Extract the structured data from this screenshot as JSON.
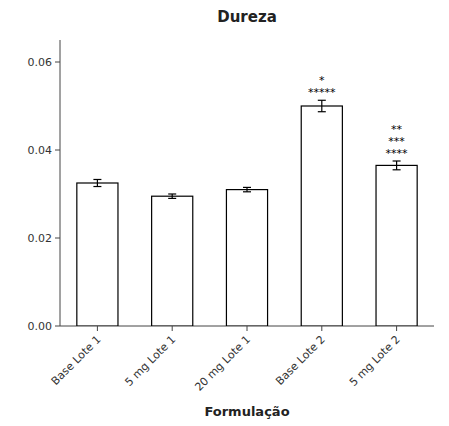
{
  "chart_data": {
    "type": "bar",
    "title": "Dureza",
    "xlabel": "Formulação",
    "categories": [
      "Base Lote 1",
      "5 mg Lote 1",
      "20 mg Lote 1",
      "Base Lote 2",
      "5 mg Lote 2"
    ],
    "values": [
      0.0325,
      0.0295,
      0.031,
      0.05,
      0.0365
    ],
    "errors": [
      0.0008,
      0.0005,
      0.0005,
      0.0013,
      0.001
    ],
    "color": "#ffffff",
    "ylim": [
      0.0,
      0.065
    ],
    "yticks": [
      {
        "value": 0.0,
        "label": "0.00"
      },
      {
        "value": 0.02,
        "label": "0.02"
      },
      {
        "value": 0.04,
        "label": "0.04"
      },
      {
        "value": 0.06,
        "label": "0.06"
      }
    ],
    "annotations": [
      {
        "category": "Base Lote 2",
        "texts": [
          "*",
          "*****"
        ]
      },
      {
        "category": "5 mg Lote 2",
        "texts": [
          "**",
          "***",
          "****"
        ]
      }
    ]
  }
}
